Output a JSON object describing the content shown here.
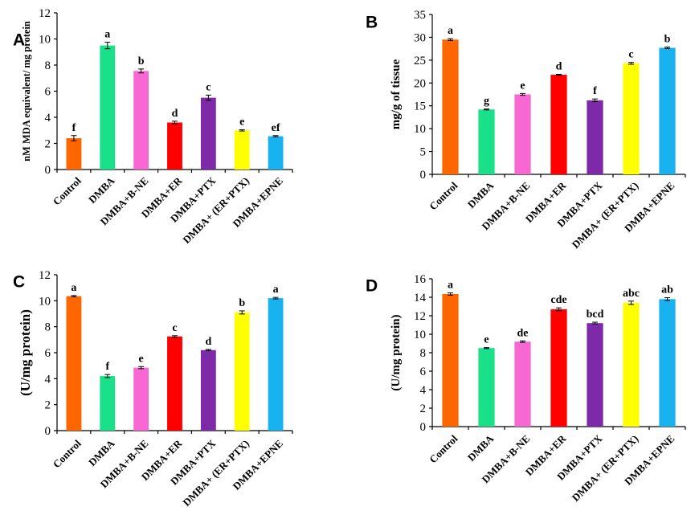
{
  "chart_data": [
    {
      "panel": "A",
      "type": "bar",
      "ylabel": "nM MDA equivalent/ mg protein",
      "ylim": [
        0,
        12
      ],
      "yticks": [
        0,
        2,
        4,
        6,
        8,
        10,
        12
      ],
      "categories": [
        "Control",
        "DMBA",
        "DMBA+B-NE",
        "DMBA+ER",
        "DMBA+PTX",
        "DMBA+ (ER+PTX)",
        "DMBA+EPNE"
      ],
      "values": [
        2.4,
        9.5,
        7.55,
        3.6,
        5.5,
        3.0,
        2.55
      ],
      "errors": [
        0.2,
        0.25,
        0.15,
        0.1,
        0.2,
        0.05,
        0.05
      ],
      "letters": [
        "f",
        "a",
        "b",
        "d",
        "c",
        "e",
        "ef"
      ],
      "colors": [
        "#ff6600",
        "#1be08a",
        "#f868d2",
        "#ff0000",
        "#7e2aa8",
        "#ffff00",
        "#18b2f0"
      ]
    },
    {
      "panel": "B",
      "type": "bar",
      "ylabel": "mg/g of tissue",
      "ylim": [
        0,
        35
      ],
      "yticks": [
        0,
        5,
        10,
        15,
        20,
        25,
        30,
        35
      ],
      "categories": [
        "Control",
        "DMBA",
        "DMBA+B-NE",
        "DMBA+ER",
        "DMBA+PTX",
        "DMBA+ (ER+PTX)",
        "DMBA+EPNE"
      ],
      "values": [
        29.5,
        14.2,
        17.5,
        21.8,
        16.2,
        24.3,
        27.7
      ],
      "errors": [
        0.2,
        0.1,
        0.2,
        0.1,
        0.3,
        0.2,
        0.15
      ],
      "letters": [
        "a",
        "g",
        "e",
        "d",
        "f",
        "c",
        "b"
      ],
      "colors": [
        "#ff6600",
        "#1be08a",
        "#f868d2",
        "#ff0000",
        "#7e2aa8",
        "#ffff00",
        "#18b2f0"
      ]
    },
    {
      "panel": "C",
      "type": "bar",
      "ylabel": "(U/mg protein)",
      "ylim": [
        0,
        12
      ],
      "yticks": [
        0,
        2,
        4,
        6,
        8,
        10,
        12
      ],
      "categories": [
        "Control",
        "DMBA",
        "DMBA+B-NE",
        "DMBA+ER",
        "DMBA+PTX",
        "DMBA+ (ER+PTX)",
        "DMBA+EPNE"
      ],
      "values": [
        10.35,
        4.2,
        4.85,
        7.25,
        6.2,
        9.1,
        10.2
      ],
      "errors": [
        0.05,
        0.12,
        0.08,
        0.06,
        0.05,
        0.12,
        0.06
      ],
      "letters": [
        "a",
        "f",
        "e",
        "c",
        "d",
        "b",
        "a"
      ],
      "colors": [
        "#ff6600",
        "#1be08a",
        "#f868d2",
        "#ff0000",
        "#7e2aa8",
        "#ffff00",
        "#18b2f0"
      ]
    },
    {
      "panel": "D",
      "type": "bar",
      "ylabel": "(U/mg protein)",
      "ylim": [
        0,
        16
      ],
      "yticks": [
        0,
        2,
        4,
        6,
        8,
        10,
        12,
        14,
        16
      ],
      "categories": [
        "Control",
        "DMBA",
        "DMBA+B-NE",
        "DMBA+ER",
        "DMBA+PTX",
        "DMBA+ (ER+PTX)",
        "DMBA+EPNE"
      ],
      "values": [
        14.35,
        8.5,
        9.2,
        12.7,
        11.2,
        13.4,
        13.8
      ],
      "errors": [
        0.12,
        0.05,
        0.08,
        0.15,
        0.1,
        0.18,
        0.15
      ],
      "letters": [
        "a",
        "e",
        "de",
        "cde",
        "bcd",
        "abc",
        "ab"
      ],
      "colors": [
        "#ff6600",
        "#1be08a",
        "#f868d2",
        "#ff0000",
        "#7e2aa8",
        "#ffff00",
        "#18b2f0"
      ]
    }
  ]
}
